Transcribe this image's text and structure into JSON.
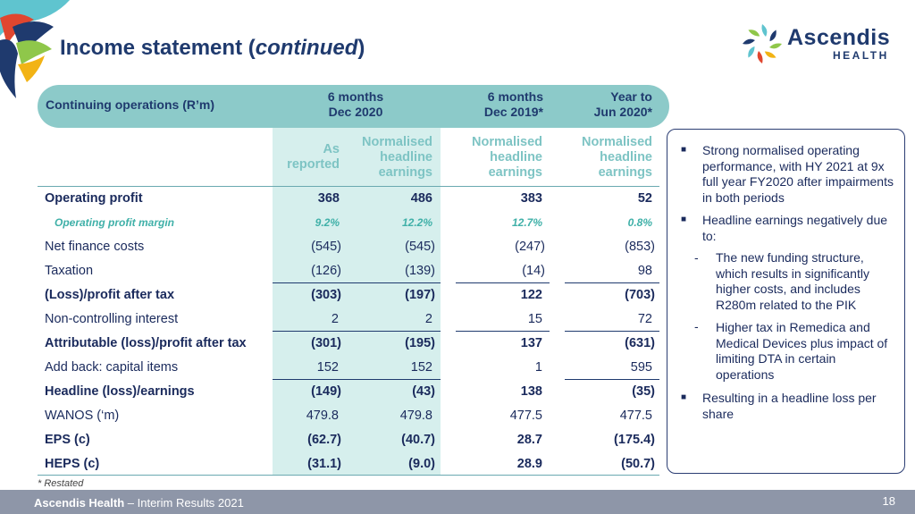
{
  "title": {
    "main": "Income statement (",
    "italic": "continued",
    "end": ")"
  },
  "logo": {
    "line1": "Ascendis",
    "line2": "HEALTH"
  },
  "header": {
    "label": "Continuing operations (R’m)",
    "col1": [
      "6 months",
      "Dec 2020"
    ],
    "col2": [
      "6 months",
      "Dec 2019*"
    ],
    "col3": [
      "Year to",
      "Jun 2020*"
    ]
  },
  "subheaders": {
    "as_reported": [
      "As",
      "reported"
    ],
    "normalised1": [
      "Normalised",
      "headline",
      "earnings"
    ],
    "normalised2": [
      "Normalised",
      "headline",
      "earnings"
    ],
    "normalised3": [
      "Normalised",
      "headline",
      "earnings"
    ]
  },
  "rows": [
    {
      "label": "Operating profit",
      "v": [
        "368",
        "486",
        "383",
        "52"
      ],
      "style": "bold"
    },
    {
      "label": "Operating profit margin",
      "v": [
        "9.2%",
        "12.2%",
        "12.7%",
        "0.8%"
      ],
      "style": "italic"
    },
    {
      "label": "Net finance costs",
      "v": [
        "(545)",
        "(545)",
        "(247)",
        "(853)"
      ],
      "style": "normal"
    },
    {
      "label": "Taxation",
      "v": [
        "(126)",
        "(139)",
        "(14)",
        "98"
      ],
      "style": "normal"
    },
    {
      "label": "(Loss)/profit after tax",
      "v": [
        "(303)",
        "(197)",
        "122",
        "(703)"
      ],
      "style": "bold"
    },
    {
      "label": "Non-controlling interest",
      "v": [
        "2",
        "2",
        "15",
        "72"
      ],
      "style": "normal"
    },
    {
      "label": "Attributable (loss)/profit after tax",
      "v": [
        "(301)",
        "(195)",
        "137",
        "(631)"
      ],
      "style": "bold"
    },
    {
      "label": "Add back: capital items",
      "v": [
        "152",
        "152",
        "1",
        "595"
      ],
      "style": "normal"
    },
    {
      "label": "Headline (loss)/earnings",
      "v": [
        "(149)",
        "(43)",
        "138",
        "(35)"
      ],
      "style": "bold"
    },
    {
      "label": "WANOS (‘m)",
      "v": [
        "479.8",
        "479.8",
        "477.5",
        "477.5"
      ],
      "style": "normal"
    },
    {
      "label": "EPS (c)",
      "v": [
        "(62.7)",
        "(40.7)",
        "28.7",
        "(175.4)"
      ],
      "style": "bold"
    },
    {
      "label": "HEPS (c)",
      "v": [
        "(31.1)",
        "(9.0)",
        "28.9",
        "(50.7)"
      ],
      "style": "bold"
    }
  ],
  "notes": [
    "Strong normalised operating performance, with HY 2021 at 9x full year FY2020 after impairments in both periods",
    "Headline earnings negatively due to:",
    "The new funding structure, which results in significantly higher costs, and includes R280m related to the PIK",
    "Higher tax in Remedica and Medical Devices plus impact of limiting DTA in certain operations",
    "Resulting in a headline loss per share"
  ],
  "footnote": "* Restated",
  "footer": {
    "brand": "Ascendis Health",
    "text": " – Interim Results 2021",
    "page": "18"
  },
  "colors": {
    "teal": "#8ccac9",
    "navy": "#1f3a6e",
    "band": "#d6efed",
    "footer": "#8e96a8"
  }
}
